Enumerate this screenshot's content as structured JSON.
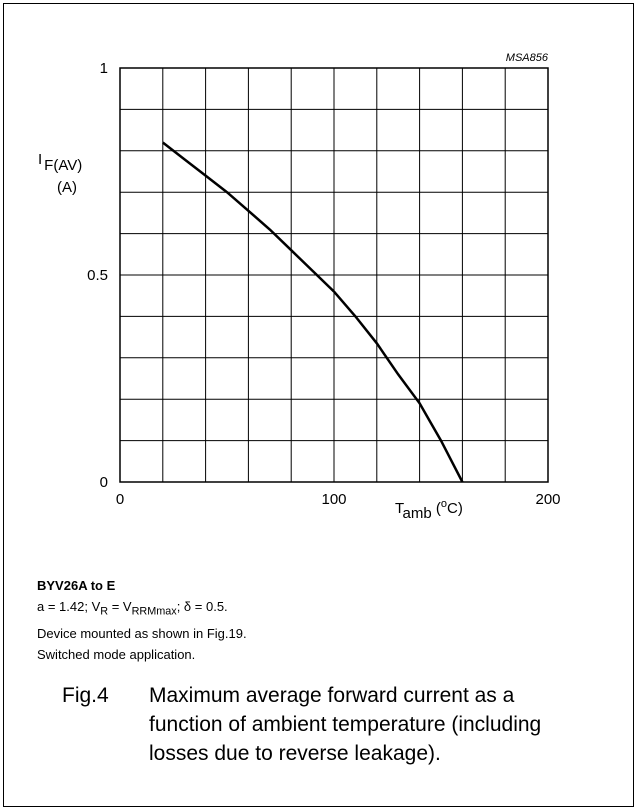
{
  "chart_data": {
    "type": "line",
    "figure_code": "MSA856",
    "ylabel_main": "I",
    "ylabel_sub": "F(AV)",
    "yunit": "(A)",
    "xlabel_main": "T",
    "xlabel_sub": "amb",
    "xunit_open": " (",
    "xunit_sup": "o",
    "xunit_close": "C)",
    "xlim": [
      0,
      200
    ],
    "ylim": [
      0,
      1
    ],
    "xticks": [
      0,
      100,
      200
    ],
    "xtick_labels": [
      "0",
      "100",
      "200"
    ],
    "yticks": [
      0,
      0.5,
      1
    ],
    "ytick_labels": [
      "0",
      "0.5",
      "1"
    ],
    "grid": true,
    "series": [
      {
        "x": [
          20,
          30,
          40,
          50,
          60,
          70,
          80,
          90,
          100,
          110,
          120,
          130,
          140,
          145,
          150,
          155,
          160
        ],
        "y": [
          0.82,
          0.78,
          0.74,
          0.7,
          0.655,
          0.61,
          0.56,
          0.51,
          0.46,
          0.4,
          0.335,
          0.26,
          0.19,
          0.145,
          0.1,
          0.05,
          0.0
        ]
      }
    ]
  },
  "notes": {
    "heading": "BYV26A to E",
    "line1_prefix": "a = 1.42; V",
    "line1_sub1": "R",
    "line1_mid": " = V",
    "line1_sub2": "RRMmax",
    "line1_suffix": "; δ = 0.5.",
    "line2": "Device mounted as shown in Fig.19.",
    "line3": "Switched mode application."
  },
  "caption": {
    "number": "Fig.4",
    "text": "Maximum average forward current as a function of ambient temperature (including losses due to reverse leakage)."
  }
}
